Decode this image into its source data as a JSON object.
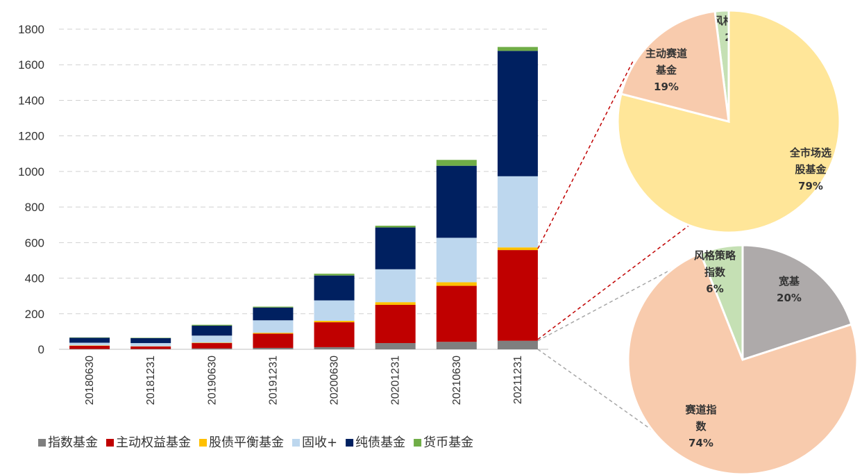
{
  "chart_data": [
    {
      "type": "bar",
      "stacked": true,
      "categories": [
        "20180630",
        "20181231",
        "20190630",
        "20191231",
        "20200630",
        "20201231",
        "20210630",
        "20211231"
      ],
      "ylim": [
        0,
        1800
      ],
      "yticks": [
        0,
        200,
        400,
        600,
        800,
        1000,
        1200,
        1400,
        1600,
        1800
      ],
      "grid": true,
      "legend_position": "bottom",
      "series": [
        {
          "name": "指数基金",
          "color": "#7f7f7f",
          "values": [
            2,
            2,
            5,
            8,
            12,
            35,
            42,
            48
          ]
        },
        {
          "name": "主动权益基金",
          "color": "#c00000",
          "values": [
            18,
            14,
            30,
            80,
            140,
            215,
            315,
            510
          ]
        },
        {
          "name": "股债平衡基金",
          "color": "#ffc000",
          "values": [
            2,
            1,
            2,
            5,
            8,
            15,
            20,
            15
          ]
        },
        {
          "name": "固收+",
          "color": "#bdd7ee",
          "values": [
            15,
            18,
            40,
            70,
            115,
            185,
            250,
            400
          ]
        },
        {
          "name": "纯债基金",
          "color": "#002060",
          "values": [
            28,
            28,
            56,
            72,
            140,
            235,
            405,
            705
          ]
        },
        {
          "name": "货币基金",
          "color": "#70ad47",
          "values": [
            2,
            2,
            5,
            5,
            10,
            10,
            33,
            22
          ]
        }
      ]
    },
    {
      "type": "pie",
      "description_for": "主动权益基金 breakdown (2021-12-31)",
      "slices": [
        {
          "label_lines": [
            "风格策略"
          ],
          "pct_label": "2%",
          "value": 2,
          "color": "#c5e0b4"
        },
        {
          "label_lines": [
            "全市场选",
            "股基金"
          ],
          "pct_label": "79%",
          "value": 79,
          "color": "#ffe699"
        },
        {
          "label_lines": [
            "主动赛道",
            "基金"
          ],
          "pct_label": "19%",
          "value": 19,
          "color": "#f8cbad"
        }
      ]
    },
    {
      "type": "pie",
      "description_for": "指数基金 breakdown (2021-12-31)",
      "slices": [
        {
          "label_lines": [
            "宽基"
          ],
          "pct_label": "20%",
          "value": 20,
          "color": "#aeaaaa"
        },
        {
          "label_lines": [
            "赛道指",
            "数"
          ],
          "pct_label": "74%",
          "value": 74,
          "color": "#f8cbad"
        },
        {
          "label_lines": [
            "风格策略",
            "指数"
          ],
          "pct_label": "6%",
          "value": 6,
          "color": "#c5e0b4"
        }
      ]
    }
  ]
}
